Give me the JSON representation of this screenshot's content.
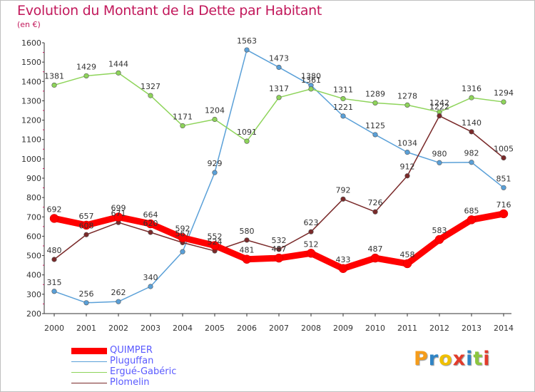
{
  "title": "Evolution du Montant de la Dette par Habitant",
  "subtitle": "(en €)",
  "logo": {
    "text": "Proxiti",
    "letters": [
      {
        "ch": "P",
        "color": "#f59c1a"
      },
      {
        "ch": "r",
        "color": "#2f84c5"
      },
      {
        "ch": "o",
        "color": "#f0c000"
      },
      {
        "ch": "x",
        "color": "#e23b2b"
      },
      {
        "ch": "i",
        "color": "#2f84c5"
      },
      {
        "ch": "t",
        "color": "#8cc63f"
      },
      {
        "ch": "i",
        "color": "#e23b2b"
      }
    ]
  },
  "chart_data": {
    "type": "line",
    "title": "Evolution du Montant de la Dette par Habitant",
    "subtitle": "(en €)",
    "x": [
      "2000",
      "2001",
      "2002",
      "2003",
      "2004",
      "2005",
      "2006",
      "2007",
      "2008",
      "2009",
      "2010",
      "2011",
      "2012",
      "2013",
      "2014"
    ],
    "ylim": [
      200,
      1600
    ],
    "yticks": [
      "200",
      "300",
      "400",
      "500",
      "600",
      "700",
      "800",
      "900",
      "1000",
      "1100",
      "1200",
      "1300",
      "1400",
      "1500",
      "1600"
    ],
    "grid": false,
    "legend_position": "bottom-left",
    "series": [
      {
        "name": "QUIMPER",
        "color": "#ff0000",
        "values": [
          692,
          657,
          699,
          664,
          592,
          552,
          481,
          487,
          512,
          433,
          487,
          458,
          583,
          685,
          716
        ],
        "labels": [
          "692",
          "657",
          "699",
          "664",
          "592",
          "552",
          "481",
          "487",
          "512",
          "433",
          "487",
          "458",
          "583",
          "685",
          "716"
        ]
      },
      {
        "name": "Pluguffan",
        "color": "#5aa0d8",
        "values": [
          315,
          256,
          262,
          340,
          520,
          929,
          1563,
          1473,
          1380,
          1221,
          1125,
          1034,
          980,
          982,
          851
        ],
        "labels": [
          "315",
          "256",
          "262",
          "340",
          "",
          "929",
          "1563",
          "1473",
          "1380",
          "1221",
          "1125",
          "1034",
          "980",
          "982",
          "851"
        ]
      },
      {
        "name": "Ergué-Gabéric",
        "color": "#8ed45a",
        "values": [
          1381,
          1429,
          1444,
          1327,
          1171,
          1204,
          1091,
          1317,
          1361,
          1311,
          1289,
          1278,
          1242,
          1316,
          1294
        ],
        "labels": [
          "1381",
          "1429",
          "1444",
          "1327",
          "1171",
          "1204",
          "1091",
          "1317",
          "1361",
          "1311",
          "1289",
          "1278",
          "1242",
          "1316",
          "1294"
        ]
      },
      {
        "name": "Plomelin",
        "color": "#7a2a2a",
        "values": [
          480,
          608,
          671,
          620,
          567,
          524,
          580,
          532,
          623,
          792,
          726,
          912,
          1222,
          1140,
          1005
        ],
        "labels": [
          "480",
          "608",
          "671",
          "620",
          "567",
          "524",
          "580",
          "532",
          "623",
          "792",
          "726",
          "912",
          "1222",
          "1140",
          "1005"
        ]
      }
    ]
  }
}
